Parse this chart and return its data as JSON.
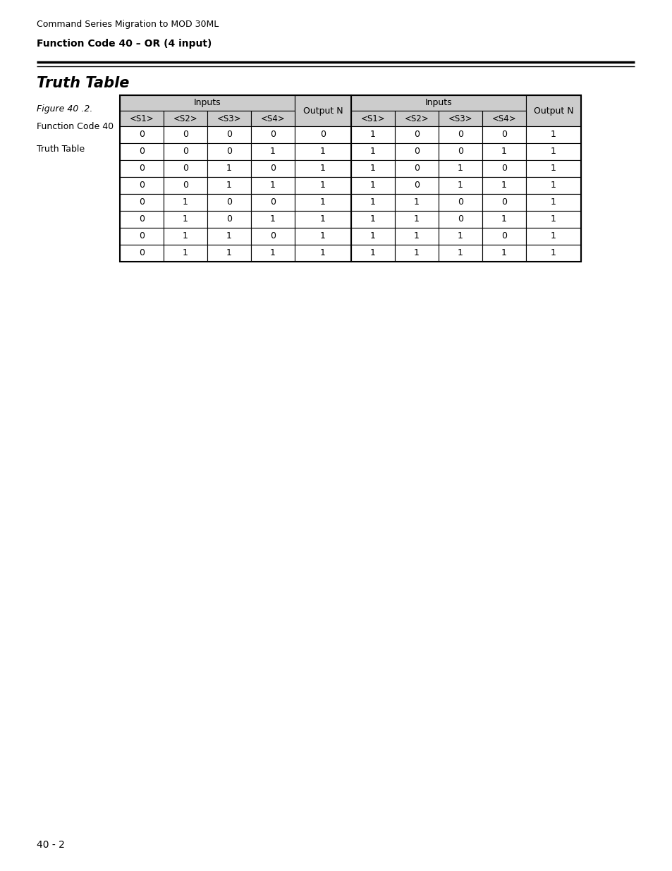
{
  "page_header": "Command Series Migration to MOD 30ML",
  "section_title": "Function Code 40 – OR (4 input)",
  "truth_table_title": "Truth Table",
  "figure_label": "Figure 40 .2.",
  "figure_desc1": "Function Code 40",
  "figure_desc2": "Truth Table",
  "col_headers_left": [
    "<S1>",
    "<S2>",
    "<S3>",
    "<S4>"
  ],
  "col_headers_right": [
    "<S1>",
    "<S2>",
    "<S3>",
    "<S4>"
  ],
  "group_header_left": "Inputs",
  "group_header_right": "Inputs",
  "output_n_label": "Output N",
  "table_data": [
    [
      0,
      0,
      0,
      0,
      0,
      1,
      0,
      0,
      0,
      1
    ],
    [
      0,
      0,
      0,
      1,
      1,
      1,
      0,
      0,
      1,
      1
    ],
    [
      0,
      0,
      1,
      0,
      1,
      1,
      0,
      1,
      0,
      1
    ],
    [
      0,
      0,
      1,
      1,
      1,
      1,
      0,
      1,
      1,
      1
    ],
    [
      0,
      1,
      0,
      0,
      1,
      1,
      1,
      0,
      0,
      1
    ],
    [
      0,
      1,
      0,
      1,
      1,
      1,
      1,
      0,
      1,
      1
    ],
    [
      0,
      1,
      1,
      0,
      1,
      1,
      1,
      1,
      0,
      1
    ],
    [
      0,
      1,
      1,
      1,
      1,
      1,
      1,
      1,
      1,
      1
    ]
  ],
  "page_footer": "40 - 2",
  "bg_color": "#ffffff",
  "header_bg": "#cccccc",
  "cell_bg_white": "#ffffff",
  "text_color": "#000000",
  "page_header_fontsize": 9,
  "section_title_fontsize": 10,
  "truth_title_fontsize": 15,
  "figure_label_fontsize": 9,
  "table_fontsize": 9,
  "footer_fontsize": 10,
  "fig_width": 9.54,
  "fig_height": 12.35,
  "dpi": 100
}
